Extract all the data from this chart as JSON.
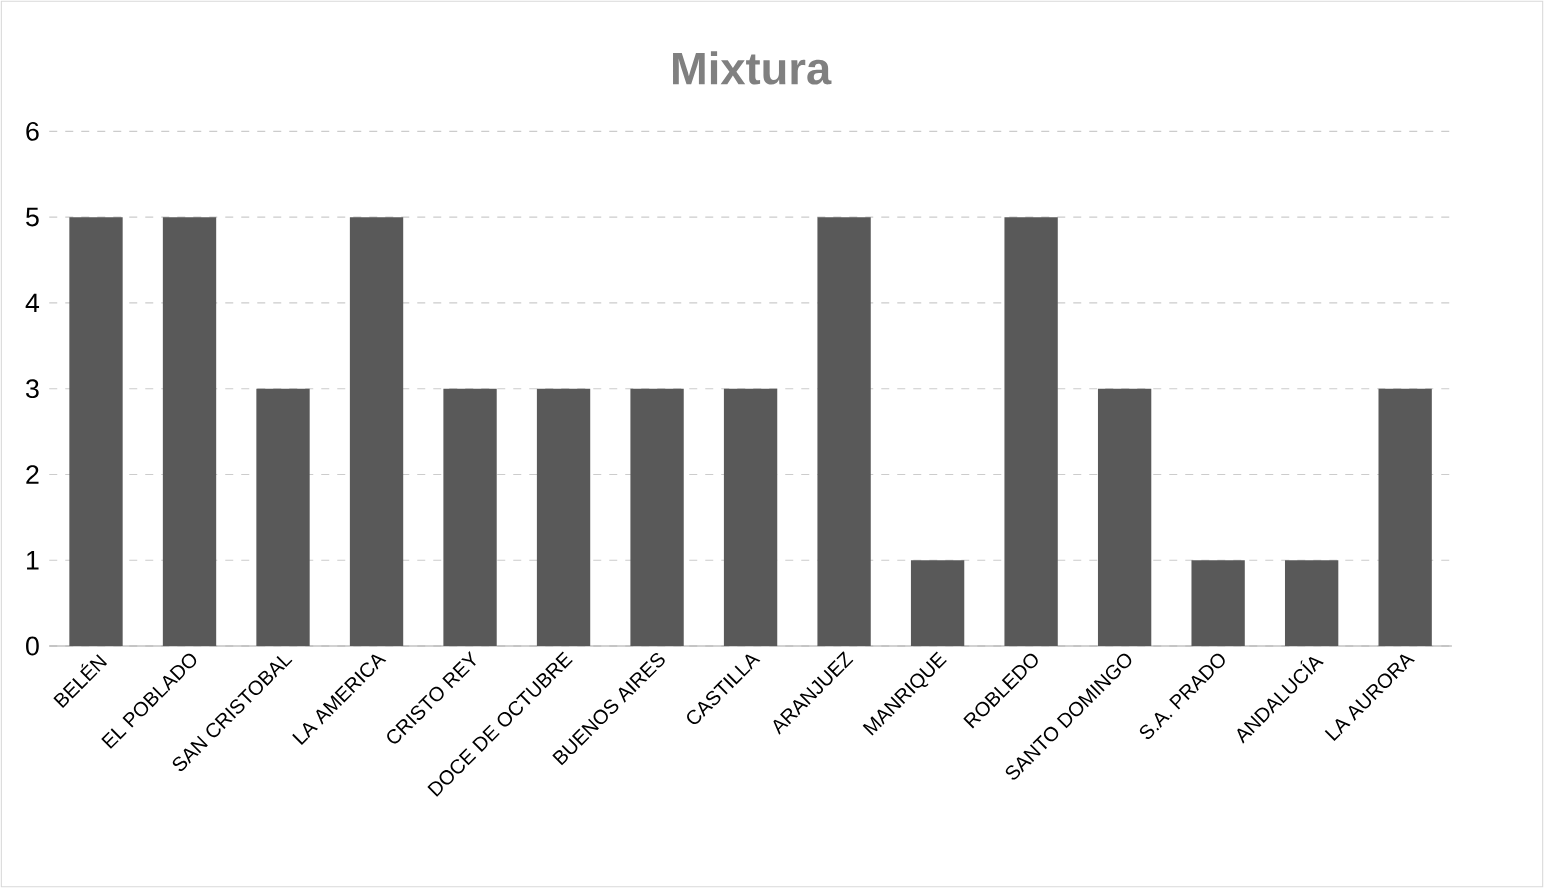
{
  "chart_data": {
    "type": "bar",
    "title": "Mixtura",
    "categories": [
      "BELÉN",
      "EL POBLADO",
      "SAN CRISTOBAL",
      "LA AMERICA",
      "CRISTO REY",
      "DOCE DE OCTUBRE",
      "BUENOS AIRES",
      "CASTILLA",
      "ARANJUEZ",
      "MANRIQUE",
      "ROBLEDO",
      "SANTO DOMINGO",
      "S.A. PRADO",
      "ANDALUCÍA",
      "LA AURORA"
    ],
    "values": [
      5,
      5,
      3,
      5,
      3,
      3,
      3,
      3,
      5,
      1,
      5,
      3,
      1,
      1,
      3
    ],
    "color": "#595959",
    "ylim": [
      0,
      6
    ],
    "yticks": [
      0,
      1,
      2,
      3,
      4,
      5,
      6
    ],
    "grid": "y"
  }
}
